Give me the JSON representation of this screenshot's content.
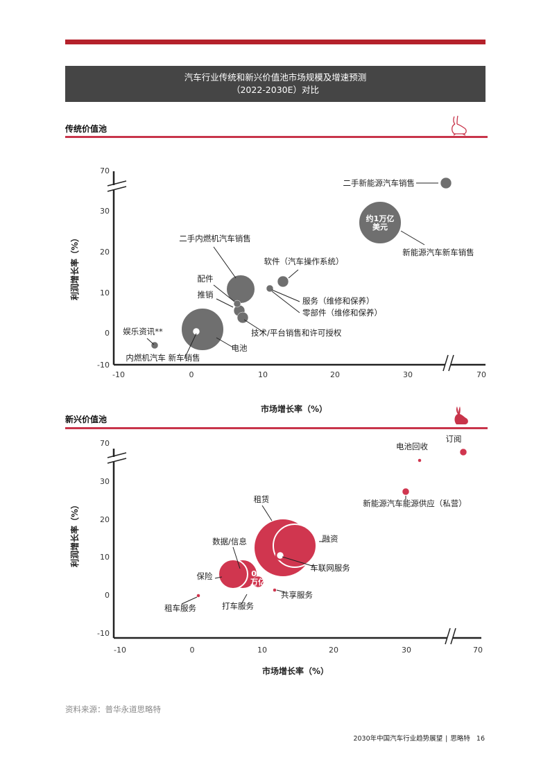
{
  "header": {
    "title_line1": "汽车行业传统和新兴价值池市场规模及增速预测",
    "title_line2": "（2022-2030E）对比"
  },
  "sections": {
    "traditional": "传统价值池",
    "emerging": "新兴价值池"
  },
  "source": "资料来源：普华永道思略特",
  "footer": {
    "doc_title": "2030年中国汽车行业趋势展望",
    "separator": "|",
    "brand": "思略特",
    "page": "16"
  },
  "colors": {
    "accent_red": "#b5212b",
    "section_rule": "#c8344a",
    "traditional_bubble": "#6f6f6f",
    "emerging_bubble": "#d0364f",
    "title_box": "#454545"
  },
  "chart_data": [
    {
      "type": "scatter",
      "name": "traditional",
      "xlabel": "市场增长率（%）",
      "ylabel": "利润增长率（%）",
      "x_ticks": [
        "-10",
        "0",
        "10",
        "20",
        "30",
        "70"
      ],
      "y_ticks": [
        "-10",
        "0",
        "10",
        "20",
        "30",
        "70"
      ],
      "xlim": [
        -10,
        70
      ],
      "ylim": [
        -10,
        70
      ],
      "axis_break": true,
      "grid": false,
      "bubble_color": "#6f6f6f",
      "points": [
        {
          "label": "二手新能源汽车销售",
          "x": 40,
          "y": 40,
          "size": "small"
        },
        {
          "label": "新能源汽车新车销售",
          "x": 27,
          "y": 27,
          "size": "large",
          "note": "约1万亿\n美元"
        },
        {
          "label": "二手内燃机汽车销售",
          "x": 7,
          "y": 11,
          "size": "medium"
        },
        {
          "label": "软件（汽车操作系统）",
          "x": 13,
          "y": 13,
          "size": "small"
        },
        {
          "label": "配件",
          "x": 6.5,
          "y": 7,
          "size": "tiny"
        },
        {
          "label": "推销",
          "x": 7,
          "y": 6,
          "size": "small"
        },
        {
          "label": "服务（维修和保养）",
          "x": 11,
          "y": 11,
          "size": "tiny"
        },
        {
          "label": "零部件（维修和保养）",
          "x": 11,
          "y": 11,
          "size": "tiny"
        },
        {
          "label": "技术/平台销售和许可授权",
          "x": 7,
          "y": 5,
          "size": "small"
        },
        {
          "label": "电池",
          "x": 2,
          "y": 1,
          "size": "large"
        },
        {
          "label": "娱乐资讯**",
          "x": -5,
          "y": -3,
          "size": "tiny"
        },
        {
          "label": "内燃机汽车  新车销售",
          "x": 0.5,
          "y": 0.5,
          "size": "ring"
        }
      ]
    },
    {
      "type": "scatter",
      "name": "emerging",
      "xlabel": "市场增长率（%）",
      "ylabel": "利润增长率（%）",
      "x_ticks": [
        "-10",
        "0",
        "10",
        "20",
        "30",
        "70"
      ],
      "y_ticks": [
        "-10",
        "0",
        "10",
        "20",
        "30",
        "70"
      ],
      "xlim": [
        -10,
        70
      ],
      "ylim": [
        -10,
        70
      ],
      "axis_break": true,
      "grid": false,
      "bubble_color": "#d0364f",
      "points": [
        {
          "label": "订阅",
          "x": 38,
          "y": 38,
          "size": "tiny"
        },
        {
          "label": "电池回收",
          "x": 33,
          "y": 36,
          "size": "dot"
        },
        {
          "label": "新能源汽车能源供应（私营）",
          "x": 30.5,
          "y": 27,
          "size": "tiny"
        },
        {
          "label": "租赁",
          "x": 13,
          "y": 14,
          "size": "xlarge"
        },
        {
          "label": "融资",
          "x": 15,
          "y": 12,
          "size": "large"
        },
        {
          "label": "车联网服务",
          "x": 13,
          "y": 11,
          "size": "ring"
        },
        {
          "label": "数据/信息",
          "x": 7,
          "y": 5,
          "size": "medium"
        },
        {
          "label": "保险",
          "x": 7,
          "y": 5,
          "size": "medium"
        },
        {
          "label": "打车服务",
          "x": 9,
          "y": 3,
          "size": "small",
          "note": "0.2\n万亿\n美元"
        },
        {
          "label": "共享服务",
          "x": 12,
          "y": 1,
          "size": "dot"
        },
        {
          "label": "租车服务",
          "x": 1,
          "y": 0,
          "size": "dot"
        }
      ]
    }
  ]
}
